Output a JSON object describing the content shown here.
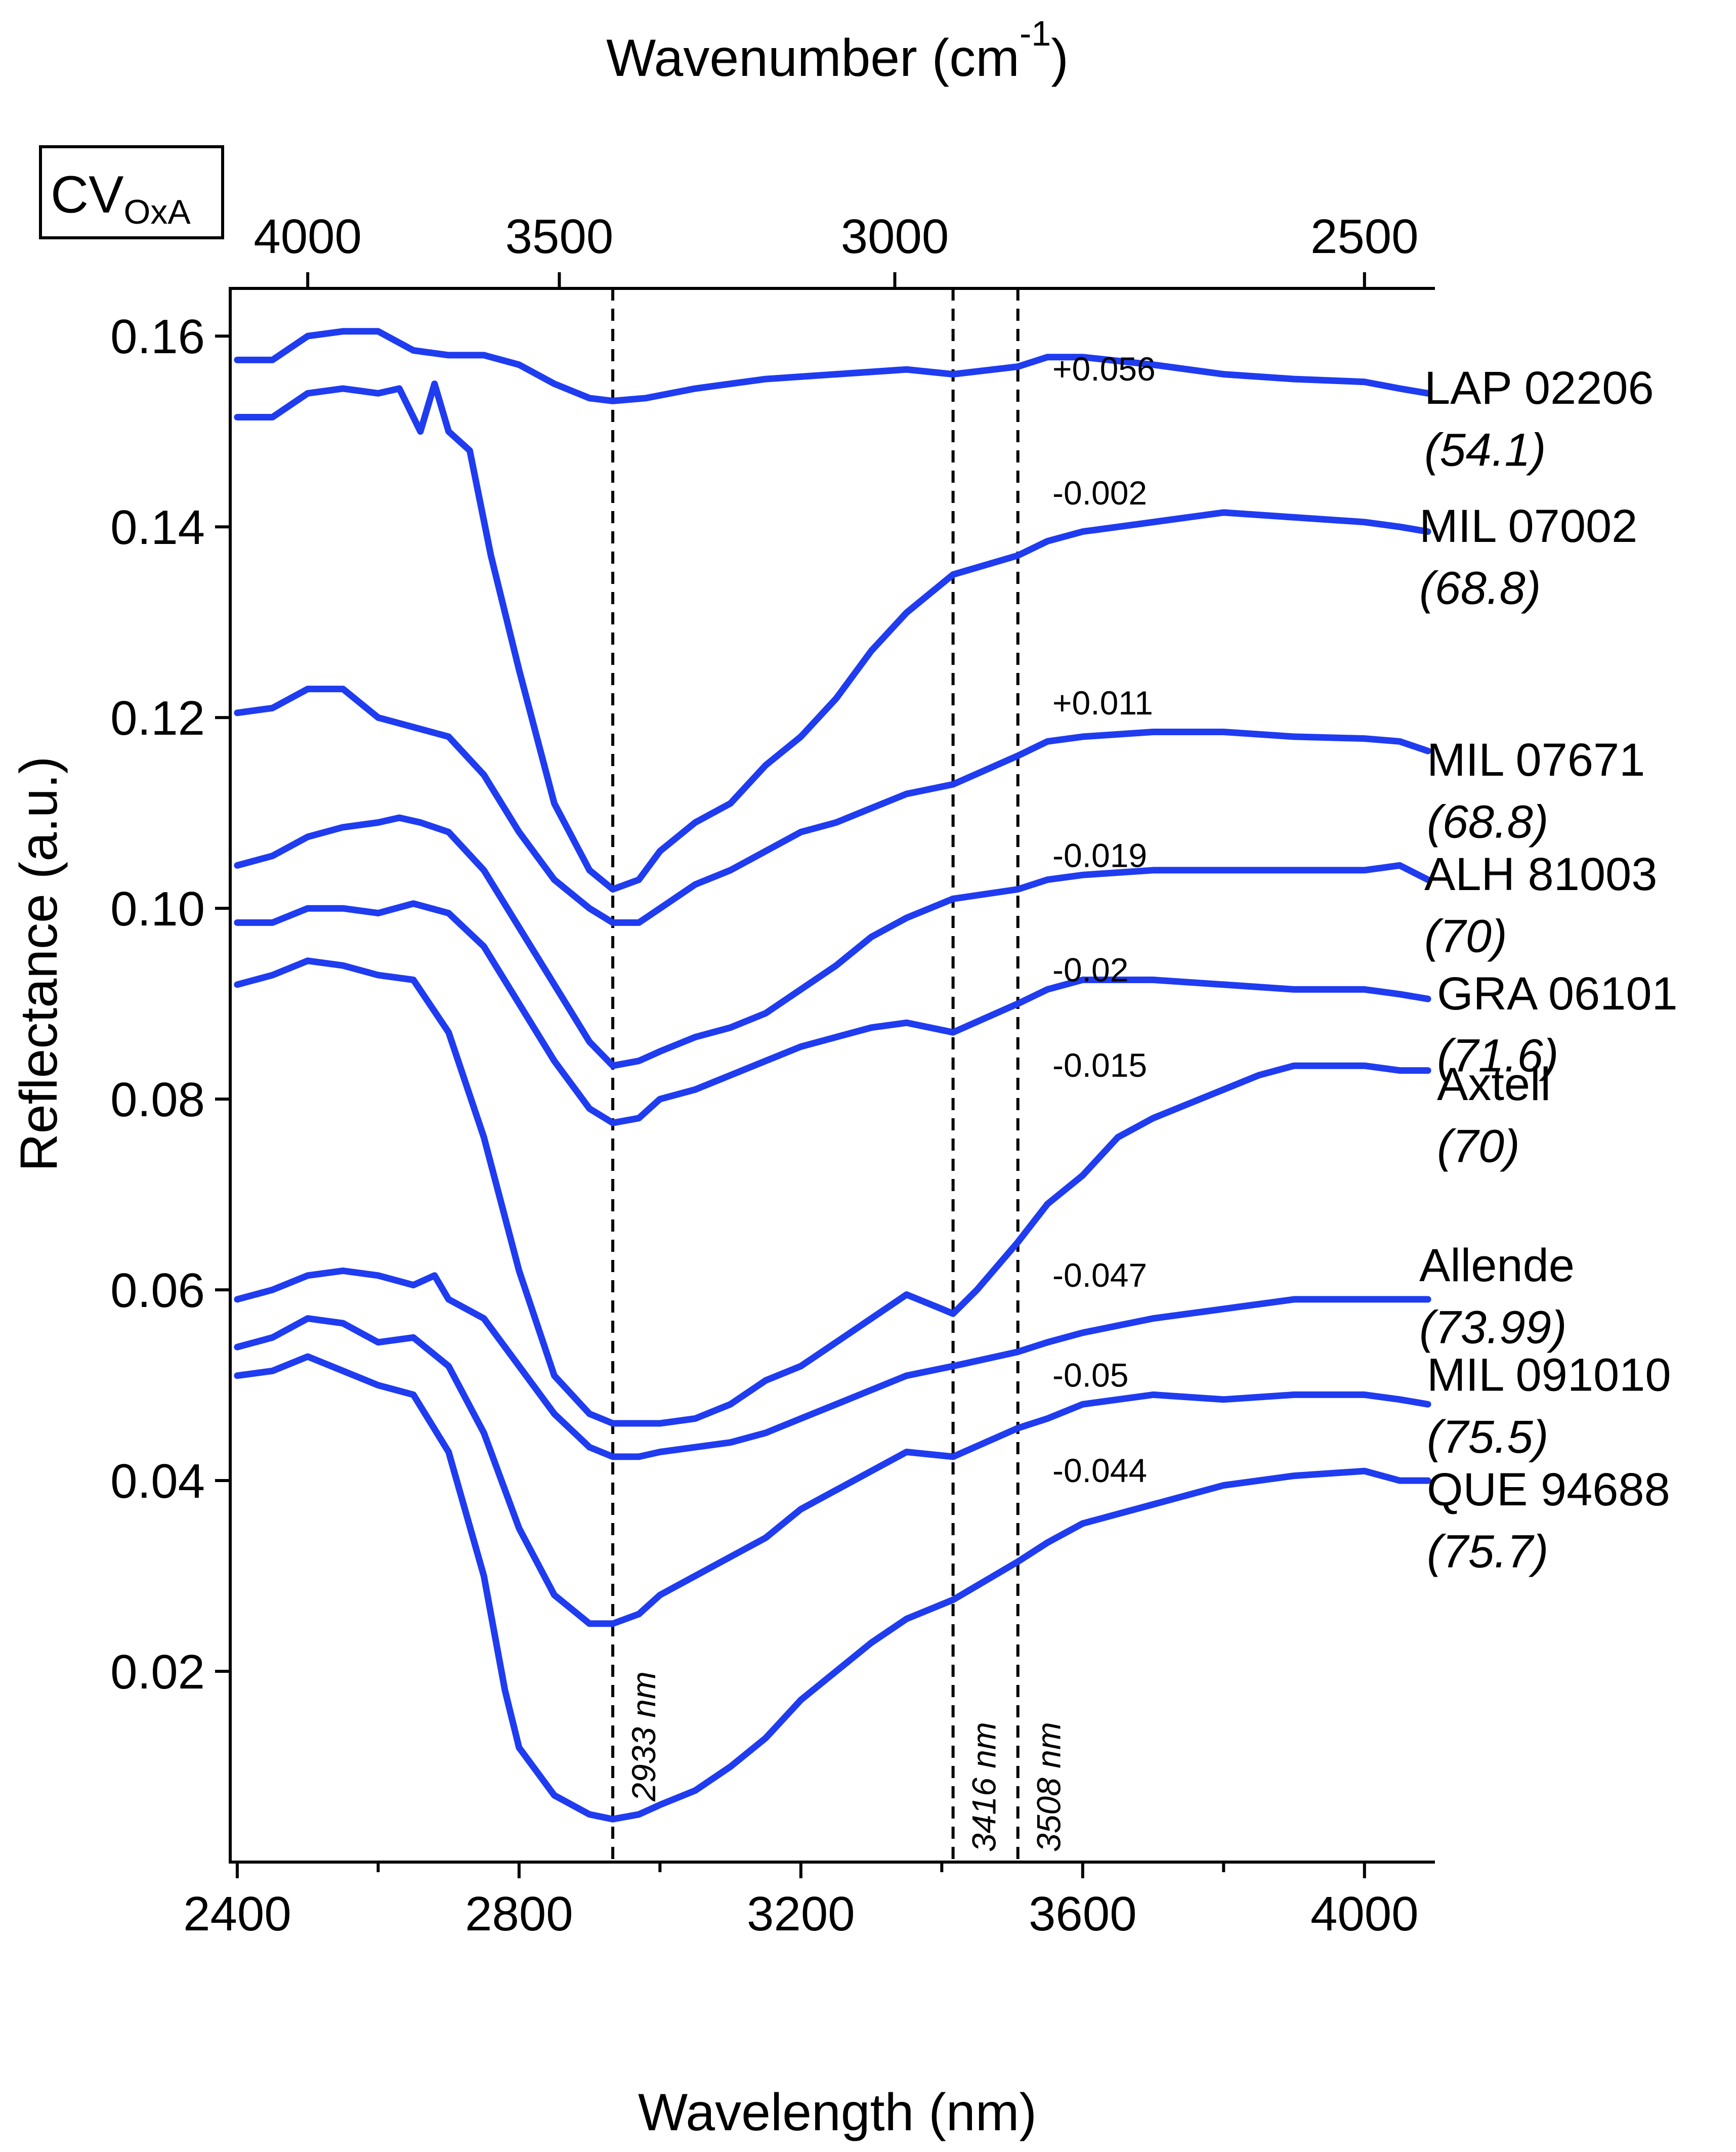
{
  "chart_data": {
    "type": "line",
    "title_box": {
      "main": "CV",
      "sub": "OxA"
    },
    "xlabel": "Wavelength (nm)",
    "x2label": "Wavenumber (cm",
    "x2label_exp": "-1",
    "x2label_close": ")",
    "ylabel": "Reflectance (a.u.)",
    "xlim": [
      2390,
      4100
    ],
    "ylim": [
      0.0,
      0.165
    ],
    "x_ticks": [
      2400,
      2800,
      3200,
      3600,
      4000
    ],
    "x_tick_labels": [
      "2400",
      "2800",
      "3200",
      "3600",
      "4000"
    ],
    "x_minor_ticks": [
      2600,
      3000,
      3400,
      3800
    ],
    "x2_ticks": [
      4000,
      3500,
      3000,
      2500
    ],
    "x2_tick_labels": [
      "4000",
      "3500",
      "3000",
      "2500"
    ],
    "y_ticks": [
      0.02,
      0.04,
      0.06,
      0.08,
      0.1,
      0.12,
      0.14,
      0.16
    ],
    "y_tick_labels": [
      "0.02",
      "0.04",
      "0.06",
      "0.08",
      "0.10",
      "0.12",
      "0.14",
      "0.16"
    ],
    "line_color": "#1f3cf0",
    "markers": [
      {
        "x": 2933,
        "label": "2933 nm"
      },
      {
        "x": 3416,
        "label": "3416 nm"
      },
      {
        "x": 3508,
        "label": "3508 nm"
      }
    ],
    "series": [
      {
        "name": "LAP 02206",
        "value": "(54.1)",
        "offset": "+0.056",
        "x": [
          2400,
          2450,
          2500,
          2550,
          2600,
          2650,
          2700,
          2750,
          2800,
          2850,
          2900,
          2933,
          2980,
          3050,
          3150,
          3250,
          3350,
          3416,
          3508,
          3550,
          3600,
          3700,
          3800,
          3900,
          4000,
          4050,
          4090
        ],
        "y": [
          0.1575,
          0.1575,
          0.16,
          0.1605,
          0.1605,
          0.1585,
          0.158,
          0.158,
          0.157,
          0.155,
          0.1535,
          0.1532,
          0.1535,
          0.1545,
          0.1555,
          0.156,
          0.1565,
          0.156,
          0.1568,
          0.1578,
          0.1578,
          0.157,
          0.156,
          0.1555,
          0.1552,
          0.1545,
          0.154
        ]
      },
      {
        "name": "MIL 07002",
        "value": "(68.8)",
        "offset": "-0.002",
        "x": [
          2400,
          2450,
          2500,
          2550,
          2600,
          2630,
          2660,
          2680,
          2700,
          2730,
          2760,
          2800,
          2850,
          2900,
          2933,
          2970,
          3000,
          3050,
          3100,
          3150,
          3200,
          3250,
          3300,
          3350,
          3416,
          3508,
          3550,
          3600,
          3700,
          3800,
          3900,
          4000,
          4050,
          4090
        ],
        "y": [
          0.1515,
          0.1515,
          0.154,
          0.1545,
          0.154,
          0.1545,
          0.15,
          0.155,
          0.15,
          0.148,
          0.137,
          0.125,
          0.111,
          0.104,
          0.102,
          0.103,
          0.106,
          0.109,
          0.111,
          0.115,
          0.118,
          0.122,
          0.127,
          0.131,
          0.135,
          0.137,
          0.1385,
          0.1395,
          0.1405,
          0.1415,
          0.141,
          0.1405,
          0.14,
          0.1395
        ]
      },
      {
        "name": "MIL 07671",
        "value": "(68.8)",
        "offset": "+0.011",
        "x": [
          2400,
          2450,
          2500,
          2550,
          2600,
          2650,
          2700,
          2750,
          2800,
          2850,
          2900,
          2933,
          2970,
          3000,
          3050,
          3100,
          3150,
          3200,
          3250,
          3300,
          3350,
          3416,
          3508,
          3550,
          3600,
          3700,
          3800,
          3900,
          4000,
          4050,
          4090
        ],
        "y": [
          0.1205,
          0.121,
          0.123,
          0.123,
          0.12,
          0.119,
          0.118,
          0.114,
          0.108,
          0.103,
          0.1,
          0.0985,
          0.0985,
          0.1,
          0.1025,
          0.104,
          0.106,
          0.108,
          0.109,
          0.1105,
          0.112,
          0.113,
          0.116,
          0.1175,
          0.118,
          0.1185,
          0.1185,
          0.118,
          0.1178,
          0.1175,
          0.1165
        ]
      },
      {
        "name": "ALH 81003",
        "value": "(70)",
        "offset": "-0.019",
        "x": [
          2400,
          2450,
          2500,
          2550,
          2600,
          2630,
          2660,
          2700,
          2750,
          2800,
          2850,
          2900,
          2933,
          2970,
          3000,
          3050,
          3100,
          3150,
          3200,
          3250,
          3300,
          3350,
          3416,
          3508,
          3550,
          3600,
          3700,
          3800,
          3900,
          4000,
          4050,
          4090
        ],
        "y": [
          0.1045,
          0.1055,
          0.1075,
          0.1085,
          0.109,
          0.1095,
          0.109,
          0.108,
          0.104,
          0.098,
          0.092,
          0.086,
          0.0835,
          0.084,
          0.085,
          0.0865,
          0.0875,
          0.089,
          0.0915,
          0.094,
          0.097,
          0.099,
          0.101,
          0.102,
          0.103,
          0.1035,
          0.104,
          0.104,
          0.104,
          0.104,
          0.1045,
          0.103
        ]
      },
      {
        "name": "GRA 06101",
        "value": "(71.6)",
        "offset": "-0.02",
        "x": [
          2400,
          2450,
          2500,
          2550,
          2600,
          2650,
          2700,
          2750,
          2800,
          2850,
          2900,
          2933,
          2970,
          3000,
          3050,
          3100,
          3150,
          3200,
          3250,
          3300,
          3350,
          3416,
          3508,
          3550,
          3600,
          3700,
          3800,
          3900,
          4000,
          4050,
          4090
        ],
        "y": [
          0.0985,
          0.0985,
          0.1,
          0.1,
          0.0995,
          0.1005,
          0.0995,
          0.096,
          0.09,
          0.084,
          0.079,
          0.0775,
          0.078,
          0.08,
          0.081,
          0.0825,
          0.084,
          0.0855,
          0.0865,
          0.0875,
          0.088,
          0.087,
          0.09,
          0.0915,
          0.0925,
          0.0925,
          0.092,
          0.0915,
          0.0915,
          0.091,
          0.0905
        ]
      },
      {
        "name": "Axtell",
        "value": "(70)",
        "offset": "-0.015",
        "x": [
          2400,
          2450,
          2500,
          2550,
          2600,
          2650,
          2700,
          2750,
          2800,
          2850,
          2900,
          2933,
          2970,
          3000,
          3050,
          3100,
          3150,
          3200,
          3250,
          3300,
          3350,
          3400,
          3416,
          3450,
          3508,
          3550,
          3600,
          3650,
          3700,
          3750,
          3800,
          3850,
          3900,
          3950,
          4000,
          4050,
          4090
        ],
        "y": [
          0.092,
          0.093,
          0.0945,
          0.094,
          0.093,
          0.0925,
          0.087,
          0.076,
          0.062,
          0.051,
          0.047,
          0.046,
          0.046,
          0.046,
          0.0465,
          0.048,
          0.0505,
          0.052,
          0.0545,
          0.057,
          0.0595,
          0.058,
          0.0575,
          0.06,
          0.065,
          0.069,
          0.072,
          0.076,
          0.078,
          0.0795,
          0.081,
          0.0825,
          0.0835,
          0.0835,
          0.0835,
          0.083,
          0.083
        ]
      },
      {
        "name": "Allende",
        "value": "(73.99)",
        "offset": "-0.047",
        "x": [
          2400,
          2450,
          2500,
          2550,
          2600,
          2650,
          2680,
          2700,
          2750,
          2800,
          2850,
          2900,
          2933,
          2970,
          3000,
          3050,
          3100,
          3150,
          3200,
          3250,
          3300,
          3350,
          3416,
          3508,
          3550,
          3600,
          3700,
          3800,
          3900,
          4000,
          4050,
          4090
        ],
        "y": [
          0.059,
          0.06,
          0.0615,
          0.062,
          0.0615,
          0.0605,
          0.0615,
          0.059,
          0.057,
          0.052,
          0.047,
          0.0435,
          0.0425,
          0.0425,
          0.043,
          0.0435,
          0.044,
          0.045,
          0.0465,
          0.048,
          0.0495,
          0.051,
          0.052,
          0.0535,
          0.0545,
          0.0555,
          0.057,
          0.058,
          0.059,
          0.059,
          0.059,
          0.059
        ]
      },
      {
        "name": "MIL 091010",
        "value": "(75.5)",
        "offset": "-0.05",
        "x": [
          2400,
          2450,
          2500,
          2550,
          2600,
          2650,
          2700,
          2750,
          2800,
          2850,
          2900,
          2933,
          2970,
          3000,
          3050,
          3100,
          3150,
          3200,
          3250,
          3300,
          3350,
          3416,
          3508,
          3550,
          3600,
          3700,
          3800,
          3900,
          4000,
          4050,
          4090
        ],
        "y": [
          0.054,
          0.055,
          0.057,
          0.0565,
          0.0545,
          0.055,
          0.052,
          0.045,
          0.035,
          0.028,
          0.025,
          0.025,
          0.026,
          0.028,
          0.03,
          0.032,
          0.034,
          0.037,
          0.039,
          0.041,
          0.043,
          0.0425,
          0.0455,
          0.0465,
          0.048,
          0.049,
          0.0485,
          0.049,
          0.049,
          0.0485,
          0.048
        ]
      },
      {
        "name": "QUE 94688",
        "value": "(75.7)",
        "offset": "-0.044",
        "x": [
          2400,
          2450,
          2500,
          2550,
          2600,
          2650,
          2700,
          2750,
          2780,
          2800,
          2850,
          2900,
          2933,
          2970,
          3000,
          3050,
          3100,
          3150,
          3200,
          3250,
          3300,
          3350,
          3416,
          3508,
          3550,
          3600,
          3650,
          3700,
          3800,
          3900,
          4000,
          4050,
          4090
        ],
        "y": [
          0.051,
          0.0515,
          0.053,
          0.0515,
          0.05,
          0.049,
          0.043,
          0.03,
          0.018,
          0.012,
          0.007,
          0.005,
          0.0045,
          0.005,
          0.006,
          0.0075,
          0.01,
          0.013,
          0.017,
          0.02,
          0.023,
          0.0255,
          0.0275,
          0.0315,
          0.0335,
          0.0355,
          0.0365,
          0.0375,
          0.0395,
          0.0405,
          0.041,
          0.04,
          0.04
        ]
      }
    ]
  }
}
